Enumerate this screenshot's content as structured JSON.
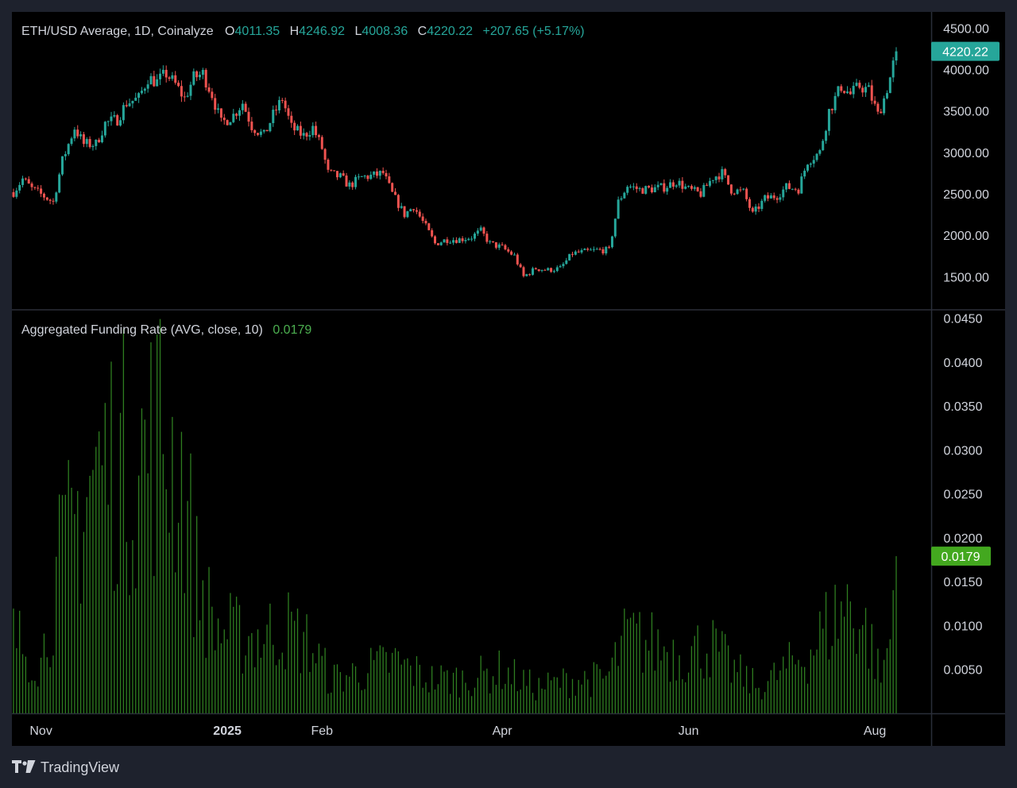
{
  "price_panel": {
    "symbol": "ETH/USD Average, 1D, Coinalyze",
    "o_label": "O",
    "o_value": "4011.35",
    "h_label": "H",
    "h_value": "4246.92",
    "l_label": "L",
    "l_value": "4008.36",
    "c_label": "C",
    "c_value": "4220.22",
    "change": "+207.65 (+5.17%)",
    "last_price": "4220.22"
  },
  "funding_panel": {
    "title": "Aggregated Funding Rate (AVG, close, 10)",
    "value": "0.0179",
    "last_value": "0.0179"
  },
  "branding": {
    "name": "TradingView"
  },
  "colors": {
    "up": "#26a69a",
    "down": "#ef5350",
    "funding": "#2e7d20",
    "funding_label": "#4caf50",
    "badge_price": "#26a69a",
    "badge_funding": "#43a81f"
  },
  "chart_data": [
    {
      "type": "candlestick",
      "title": "ETH/USD Average, 1D, Coinalyze",
      "ylim": [
        1100,
        4600
      ],
      "y_ticks": [
        "4500.00",
        "4000.00",
        "3500.00",
        "3000.00",
        "2500.00",
        "2000.00",
        "1500.00"
      ],
      "y_tick_values": [
        4500,
        4000,
        3500,
        3000,
        2500,
        2000,
        1500
      ],
      "x_ticks": [
        "Nov",
        "2025",
        "Feb",
        "Apr",
        "Jun",
        "Aug"
      ],
      "x_tick_dates": [
        "2024-11-01",
        "2025-01-01",
        "2025-02-01",
        "2025-04-01",
        "2025-06-01",
        "2025-08-01"
      ],
      "x_start_date": "2024-10-23",
      "x_end_date": "2025-08-08",
      "close_path": [
        [
          "2024-10-23",
          2520
        ],
        [
          "2024-10-26",
          2680
        ],
        [
          "2024-10-29",
          2560
        ],
        [
          "2024-11-02",
          2470
        ],
        [
          "2024-11-05",
          2400
        ],
        [
          "2024-11-08",
          2900
        ],
        [
          "2024-11-12",
          3300
        ],
        [
          "2024-11-15",
          3100
        ],
        [
          "2024-11-19",
          3100
        ],
        [
          "2024-11-22",
          3350
        ],
        [
          "2024-11-26",
          3400
        ],
        [
          "2024-11-29",
          3600
        ],
        [
          "2024-12-03",
          3650
        ],
        [
          "2024-12-06",
          3900
        ],
        [
          "2024-12-09",
          3850
        ],
        [
          "2024-12-12",
          3950
        ],
        [
          "2024-12-15",
          3820
        ],
        [
          "2024-12-18",
          3650
        ],
        [
          "2024-12-21",
          3900
        ],
        [
          "2024-12-24",
          3950
        ],
        [
          "2024-12-27",
          3700
        ],
        [
          "2024-12-30",
          3350
        ],
        [
          "2025-01-03",
          3450
        ],
        [
          "2025-01-06",
          3600
        ],
        [
          "2025-01-09",
          3320
        ],
        [
          "2025-01-13",
          3200
        ],
        [
          "2025-01-16",
          3450
        ],
        [
          "2025-01-19",
          3650
        ],
        [
          "2025-01-22",
          3300
        ],
        [
          "2025-01-26",
          3200
        ],
        [
          "2025-01-29",
          3300
        ],
        [
          "2025-02-01",
          3050
        ],
        [
          "2025-02-03",
          2750
        ],
        [
          "2025-02-07",
          2700
        ],
        [
          "2025-02-10",
          2600
        ],
        [
          "2025-02-14",
          2700
        ],
        [
          "2025-02-18",
          2720
        ],
        [
          "2025-02-21",
          2750
        ],
        [
          "2025-02-24",
          2500
        ],
        [
          "2025-02-28",
          2250
        ],
        [
          "2025-03-03",
          2350
        ],
        [
          "2025-03-07",
          2100
        ],
        [
          "2025-03-10",
          1900
        ],
        [
          "2025-03-14",
          1950
        ],
        [
          "2025-03-18",
          1950
        ],
        [
          "2025-03-22",
          1980
        ],
        [
          "2025-03-25",
          2050
        ],
        [
          "2025-03-28",
          1900
        ],
        [
          "2025-04-01",
          1850
        ],
        [
          "2025-04-05",
          1750
        ],
        [
          "2025-04-08",
          1500
        ],
        [
          "2025-04-12",
          1600
        ],
        [
          "2025-04-16",
          1580
        ],
        [
          "2025-04-20",
          1600
        ],
        [
          "2025-04-24",
          1780
        ],
        [
          "2025-04-28",
          1800
        ],
        [
          "2025-05-02",
          1820
        ],
        [
          "2025-05-06",
          1820
        ],
        [
          "2025-05-09",
          2400
        ],
        [
          "2025-05-12",
          2600
        ],
        [
          "2025-05-16",
          2550
        ],
        [
          "2025-05-20",
          2560
        ],
        [
          "2025-05-24",
          2580
        ],
        [
          "2025-05-28",
          2650
        ],
        [
          "2025-06-01",
          2550
        ],
        [
          "2025-06-05",
          2500
        ],
        [
          "2025-06-09",
          2700
        ],
        [
          "2025-06-12",
          2750
        ],
        [
          "2025-06-15",
          2550
        ],
        [
          "2025-06-19",
          2520
        ],
        [
          "2025-06-22",
          2250
        ],
        [
          "2025-06-26",
          2440
        ],
        [
          "2025-06-30",
          2480
        ],
        [
          "2025-07-03",
          2580
        ],
        [
          "2025-07-07",
          2560
        ],
        [
          "2025-07-10",
          2900
        ],
        [
          "2025-07-14",
          3000
        ],
        [
          "2025-07-17",
          3500
        ],
        [
          "2025-07-21",
          3800
        ],
        [
          "2025-07-24",
          3700
        ],
        [
          "2025-07-27",
          3800
        ],
        [
          "2025-07-30",
          3750
        ],
        [
          "2025-08-02",
          3450
        ],
        [
          "2025-08-04",
          3650
        ],
        [
          "2025-08-06",
          3900
        ],
        [
          "2025-08-08",
          4220
        ]
      ]
    },
    {
      "type": "bar",
      "title": "Aggregated Funding Rate (AVG, close, 10)",
      "ylim": [
        0,
        0.0455
      ],
      "y_ticks": [
        "0.0450",
        "0.0400",
        "0.0350",
        "0.0300",
        "0.0250",
        "0.0200",
        "0.0150",
        "0.0100",
        "0.0050"
      ],
      "y_tick_values": [
        0.045,
        0.04,
        0.035,
        0.03,
        0.025,
        0.02,
        0.015,
        0.01,
        0.005
      ],
      "x_start_date": "2024-10-23",
      "x_end_date": "2025-08-08",
      "level_path": [
        [
          "2024-10-23",
          0.009
        ],
        [
          "2024-11-01",
          0.006
        ],
        [
          "2024-11-07",
          0.017
        ],
        [
          "2024-11-12",
          0.022
        ],
        [
          "2024-11-18",
          0.028
        ],
        [
          "2024-11-25",
          0.03
        ],
        [
          "2024-12-02",
          0.029
        ],
        [
          "2024-12-10",
          0.033
        ],
        [
          "2024-12-17",
          0.028
        ],
        [
          "2024-12-22",
          0.016
        ],
        [
          "2024-12-28",
          0.01
        ],
        [
          "2025-01-05",
          0.009
        ],
        [
          "2025-01-12",
          0.009
        ],
        [
          "2025-01-20",
          0.01
        ],
        [
          "2025-01-28",
          0.008
        ],
        [
          "2025-02-04",
          0.004
        ],
        [
          "2025-02-15",
          0.005
        ],
        [
          "2025-02-25",
          0.006
        ],
        [
          "2025-03-08",
          0.004
        ],
        [
          "2025-03-20",
          0.004
        ],
        [
          "2025-04-01",
          0.005
        ],
        [
          "2025-04-12",
          0.003
        ],
        [
          "2025-04-25",
          0.004
        ],
        [
          "2025-05-05",
          0.004
        ],
        [
          "2025-05-12",
          0.009
        ],
        [
          "2025-05-20",
          0.008
        ],
        [
          "2025-05-30",
          0.007
        ],
        [
          "2025-06-08",
          0.008
        ],
        [
          "2025-06-16",
          0.005
        ],
        [
          "2025-06-24",
          0.003
        ],
        [
          "2025-07-02",
          0.005
        ],
        [
          "2025-07-10",
          0.007
        ],
        [
          "2025-07-18",
          0.011
        ],
        [
          "2025-07-24",
          0.013
        ],
        [
          "2025-07-30",
          0.009
        ],
        [
          "2025-08-03",
          0.004
        ],
        [
          "2025-08-06",
          0.009
        ],
        [
          "2025-08-08",
          0.0179
        ]
      ],
      "last_value": 0.0179
    }
  ]
}
